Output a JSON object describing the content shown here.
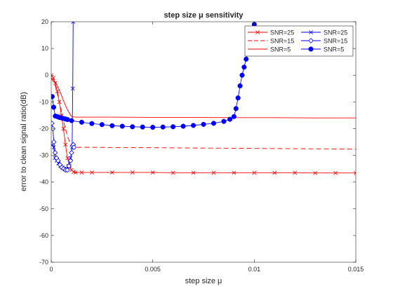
{
  "chart_data": {
    "type": "line",
    "title": "step size μ sensitivity",
    "xlabel": "step size μ",
    "ylabel": "error to clean signal ratio(dB)",
    "xlim": [
      0,
      0.015
    ],
    "ylim": [
      -70,
      20
    ],
    "xticks": [
      0,
      0.005,
      0.01,
      0.015
    ],
    "xtick_labels": [
      "0",
      "0.005",
      "0.01",
      "0.015"
    ],
    "yticks": [
      -70,
      -60,
      -50,
      -40,
      -30,
      -20,
      -10,
      0,
      10,
      20
    ],
    "ytick_labels": [
      "-70",
      "-60",
      "-50",
      "-40",
      "-30",
      "-20",
      "-10",
      "0",
      "10",
      "20"
    ],
    "grid": false,
    "legend_position": "top-right",
    "series": [
      {
        "name": "SNR=25",
        "color": "#ff0000",
        "line_style": "solid",
        "marker": "x",
        "x": [
          0.0,
          0.0001,
          0.0002,
          0.0003,
          0.0004,
          0.0005,
          0.0006,
          0.0007,
          0.0008,
          0.0009,
          0.001,
          0.0011,
          0.0012,
          0.0015,
          0.002,
          0.003,
          0.004,
          0.005,
          0.006,
          0.007,
          0.008,
          0.009,
          0.01,
          0.011,
          0.012,
          0.013,
          0.014,
          0.015
        ],
        "y": [
          0,
          -1,
          -3,
          -6,
          -10,
          -15,
          -20,
          -26,
          -31,
          -34,
          -35.5,
          -36.2,
          -36.4,
          -36.4,
          -36.4,
          -36.4,
          -36.4,
          -36.4,
          -36.5,
          -36.5,
          -36.5,
          -36.5,
          -36.5,
          -36.5,
          -36.5,
          -36.6,
          -36.6,
          -36.6
        ]
      },
      {
        "name": "SNR=15",
        "color": "#ff0000",
        "line_style": "dashed",
        "marker": "none",
        "x": [
          0.0,
          0.0002,
          0.0004,
          0.0006,
          0.0008,
          0.001,
          0.0011,
          0.002,
          0.004,
          0.006,
          0.008,
          0.01,
          0.012,
          0.014,
          0.015
        ],
        "y": [
          -1,
          -4,
          -10,
          -17,
          -23,
          -26.5,
          -27,
          -27,
          -27.1,
          -27.2,
          -27.3,
          -27.4,
          -27.5,
          -27.6,
          -27.7
        ]
      },
      {
        "name": "SNR=5",
        "color": "#ff0000",
        "line_style": "solid",
        "marker": "none",
        "x": [
          0.0,
          0.0002,
          0.0004,
          0.0006,
          0.0008,
          0.001,
          0.0012,
          0.003,
          0.005,
          0.007,
          0.009,
          0.011,
          0.013,
          0.015
        ],
        "y": [
          -1,
          -2.5,
          -5.5,
          -9.5,
          -13,
          -15.5,
          -15.7,
          -15.7,
          -15.8,
          -15.8,
          -15.9,
          -15.9,
          -16,
          -16
        ]
      },
      {
        "name": "SNR=25",
        "color": "#0000ff",
        "line_style": "solid",
        "marker": "x",
        "x": [
          5e-05,
          0.00012,
          0.00018,
          0.00026,
          0.00035,
          0.00045,
          0.00055,
          0.00065,
          0.00075,
          0.00085,
          0.00095,
          0.00103,
          0.00106,
          0.00108
        ],
        "y": [
          -26,
          -27,
          -31,
          -32,
          -33,
          -34,
          -34.5,
          -35,
          -35,
          -34,
          -31,
          -27,
          -5,
          20
        ]
      },
      {
        "name": "SNR=15",
        "color": "#0000ff",
        "line_style": "solid",
        "marker": "diamond",
        "x": [
          3e-05,
          8e-05,
          0.00013,
          0.00019,
          0.00026,
          0.00034,
          0.00043,
          0.00052,
          0.00061,
          0.0007,
          0.00079,
          0.00087,
          0.00095,
          0.001,
          0.00104,
          0.00109,
          0.00112
        ],
        "y": [
          -18,
          -20,
          -25,
          -29,
          -31,
          -32,
          -33.5,
          -34.5,
          -35,
          -35.5,
          -35.5,
          -34,
          -32,
          -29,
          -26.5,
          -26,
          -27
        ]
      },
      {
        "name": "SNR=5",
        "color": "#0000ff",
        "line_style": "solid",
        "marker": "filled-circle",
        "x": [
          5e-05,
          0.00012,
          0.0002,
          0.0003,
          0.0004,
          0.0005,
          0.0006,
          0.0007,
          0.0008,
          0.001,
          0.0015,
          0.002,
          0.0025,
          0.003,
          0.0035,
          0.004,
          0.0045,
          0.005,
          0.0055,
          0.006,
          0.0065,
          0.007,
          0.0075,
          0.008,
          0.0085,
          0.0088,
          0.009,
          0.0091,
          0.0092,
          0.0093,
          0.0094,
          0.0095,
          0.0096,
          0.0097,
          0.0098,
          0.0099,
          0.01
        ],
        "y": [
          -8,
          -12,
          -15.3,
          -15.5,
          -15.8,
          -16,
          -16.2,
          -16.4,
          -16.6,
          -17,
          -17.6,
          -18.1,
          -18.5,
          -18.9,
          -19.1,
          -19.3,
          -19.4,
          -19.5,
          -19.4,
          -19.3,
          -19.1,
          -18.8,
          -18.4,
          -18,
          -17.3,
          -16.5,
          -15.5,
          -12.5,
          -8.5,
          -4,
          0,
          3,
          6,
          9,
          12,
          15,
          19
        ]
      }
    ]
  }
}
